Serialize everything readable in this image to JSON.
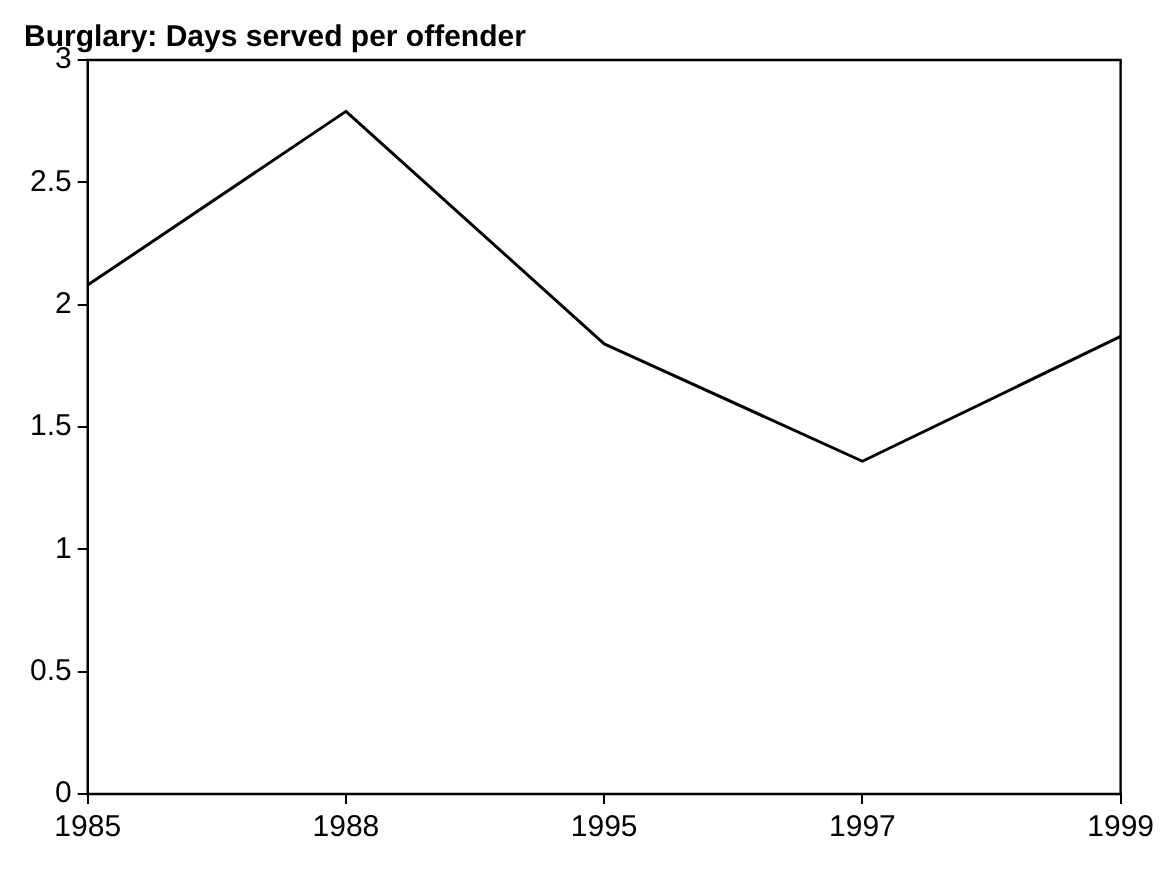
{
  "chart_data": {
    "type": "line",
    "title": "Burglary: Days served per offender",
    "categories": [
      "1985",
      "1988",
      "1995",
      "1997",
      "1999"
    ],
    "series": [
      {
        "color": "#000000",
        "values": [
          2.08,
          2.79,
          1.84,
          1.36,
          1.87
        ]
      }
    ],
    "ylim": [
      0,
      3
    ],
    "yticks": [
      0,
      0.5,
      1,
      1.5,
      2,
      2.5,
      3
    ],
    "grid": false,
    "legend": false,
    "marker": "none",
    "line_style": "solid"
  }
}
